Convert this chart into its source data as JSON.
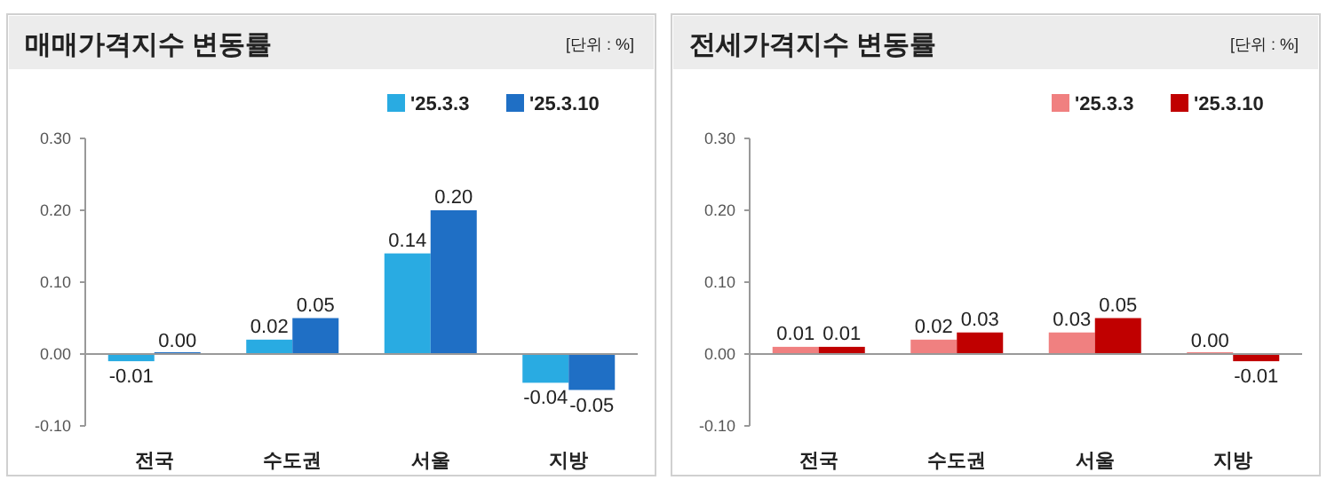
{
  "chart_data": [
    {
      "type": "bar",
      "title": "매매가격지수 변동률",
      "annotations": [
        "[단위 : %]"
      ],
      "categories": [
        "전국",
        "수도권",
        "서울",
        "지방"
      ],
      "ylim": [
        -0.1,
        0.3
      ],
      "yticks": [
        {
          "value": -0.1,
          "label": "-0.10"
        },
        {
          "value": 0,
          "label": "0.00"
        },
        {
          "value": 0.1,
          "label": "0.10"
        },
        {
          "value": 0.2,
          "label": "0.20"
        },
        {
          "value": 0.3,
          "label": "0.30"
        }
      ],
      "legend": "top right",
      "series": [
        {
          "name": "'25.3.3",
          "color": "#29abe2",
          "values": [
            -0.01,
            0.02,
            0.14,
            -0.04
          ],
          "value_labels": [
            "-0.01",
            "0.02",
            "0.14",
            "-0.04"
          ]
        },
        {
          "name": "'25.3.10",
          "color": "#1f6fc5",
          "values": [
            0.0,
            0.05,
            0.2,
            -0.05
          ],
          "value_labels": [
            "0.00",
            "0.05",
            "0.20",
            "-0.05"
          ]
        }
      ]
    },
    {
      "type": "bar",
      "title": "전세가격지수 변동률",
      "annotations": [
        "[단위 : %]"
      ],
      "categories": [
        "전국",
        "수도권",
        "서울",
        "지방"
      ],
      "ylim": [
        -0.1,
        0.3
      ],
      "yticks": [
        {
          "value": -0.1,
          "label": "-0.10"
        },
        {
          "value": 0,
          "label": "0.00"
        },
        {
          "value": 0.1,
          "label": "0.10"
        },
        {
          "value": 0.2,
          "label": "0.20"
        },
        {
          "value": 0.3,
          "label": "0.30"
        }
      ],
      "legend": "top right",
      "series": [
        {
          "name": "'25.3.3",
          "color": "#f08080",
          "values": [
            0.01,
            0.02,
            0.03,
            0.0
          ],
          "value_labels": [
            "0.01",
            "0.02",
            "0.03",
            "0.00"
          ]
        },
        {
          "name": "'25.3.10",
          "color": "#c00000",
          "values": [
            0.01,
            0.03,
            0.05,
            -0.01
          ],
          "value_labels": [
            "0.01",
            "0.03",
            "0.05",
            "-0.01"
          ]
        }
      ]
    }
  ]
}
